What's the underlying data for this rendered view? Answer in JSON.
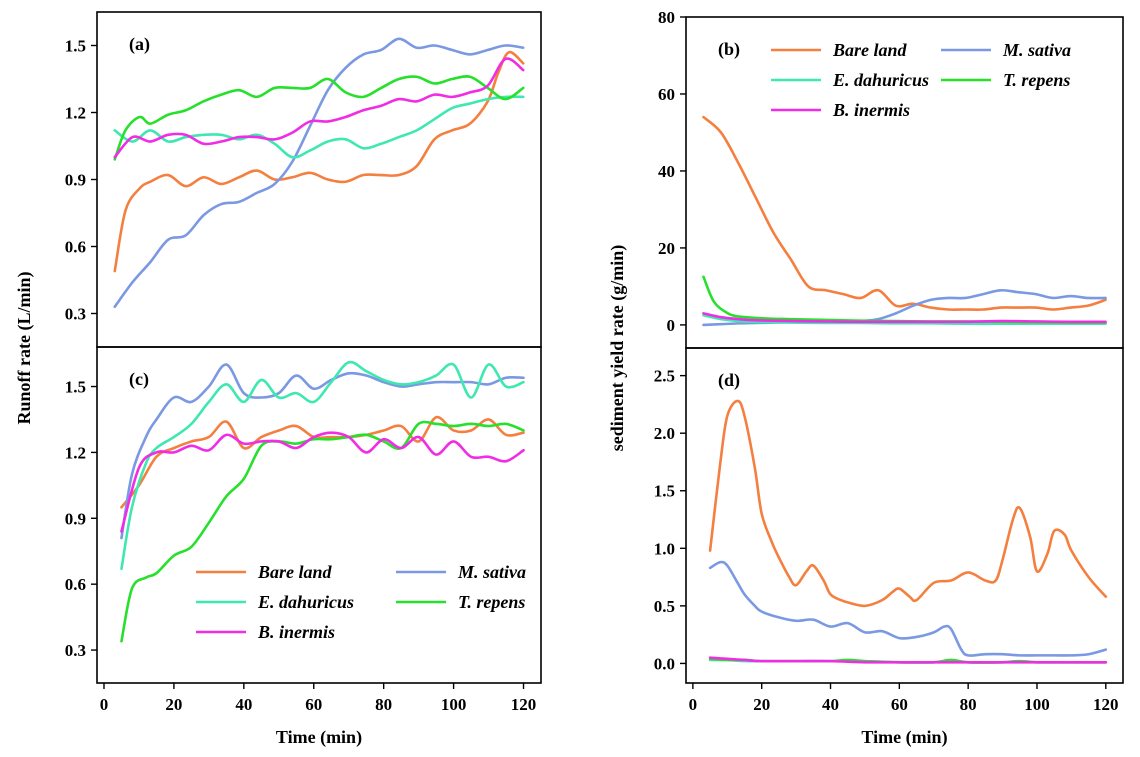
{
  "chart_data": [
    {
      "type": "line",
      "panel": "(a)",
      "ylabel": "Runoff rate (L/min)",
      "xlim": [
        0,
        125
      ],
      "ylim": [
        0.15,
        1.65
      ],
      "yticks": [
        0.3,
        0.6,
        0.9,
        1.2,
        1.5
      ],
      "legend": false,
      "series": [
        {
          "name": "Bare land",
          "color": "#f47f3f",
          "x": [
            5,
            8,
            12,
            15,
            20,
            25,
            30,
            35,
            40,
            45,
            50,
            55,
            60,
            65,
            70,
            75,
            80,
            85,
            90,
            95,
            100,
            105,
            110,
            113,
            116,
            120
          ],
          "y": [
            0.49,
            0.76,
            0.86,
            0.89,
            0.92,
            0.87,
            0.91,
            0.88,
            0.91,
            0.94,
            0.9,
            0.91,
            0.93,
            0.9,
            0.89,
            0.92,
            0.92,
            0.92,
            0.96,
            1.08,
            1.12,
            1.15,
            1.25,
            1.38,
            1.47,
            1.42
          ]
        },
        {
          "name": "M. sativa",
          "color": "#7b98e3",
          "x": [
            5,
            10,
            15,
            20,
            25,
            30,
            35,
            40,
            45,
            50,
            55,
            60,
            65,
            70,
            75,
            80,
            85,
            90,
            95,
            100,
            105,
            110,
            115,
            120
          ],
          "y": [
            0.33,
            0.44,
            0.53,
            0.63,
            0.65,
            0.74,
            0.79,
            0.8,
            0.84,
            0.88,
            0.98,
            1.14,
            1.3,
            1.4,
            1.46,
            1.48,
            1.53,
            1.49,
            1.5,
            1.48,
            1.46,
            1.48,
            1.5,
            1.49
          ]
        },
        {
          "name": "E. dahuricus",
          "color": "#3ee8b0",
          "x": [
            5,
            10,
            15,
            20,
            25,
            30,
            35,
            40,
            45,
            50,
            55,
            60,
            65,
            70,
            75,
            80,
            85,
            90,
            95,
            100,
            105,
            110,
            115,
            120
          ],
          "y": [
            1.12,
            1.07,
            1.12,
            1.07,
            1.09,
            1.1,
            1.1,
            1.08,
            1.1,
            1.06,
            1.0,
            1.03,
            1.07,
            1.08,
            1.04,
            1.06,
            1.09,
            1.12,
            1.17,
            1.22,
            1.24,
            1.26,
            1.27,
            1.27
          ]
        },
        {
          "name": "T. repens",
          "color": "#27e02c",
          "x": [
            5,
            8,
            12,
            15,
            20,
            25,
            30,
            35,
            40,
            45,
            50,
            55,
            60,
            65,
            70,
            75,
            80,
            85,
            90,
            95,
            100,
            105,
            110,
            115,
            120
          ],
          "y": [
            0.99,
            1.12,
            1.18,
            1.15,
            1.19,
            1.21,
            1.25,
            1.28,
            1.3,
            1.27,
            1.31,
            1.31,
            1.31,
            1.35,
            1.29,
            1.27,
            1.31,
            1.35,
            1.36,
            1.33,
            1.35,
            1.36,
            1.31,
            1.26,
            1.31
          ]
        },
        {
          "name": "B. inermis",
          "color": "#f02de4",
          "x": [
            5,
            10,
            15,
            20,
            25,
            30,
            35,
            40,
            45,
            50,
            55,
            60,
            65,
            70,
            75,
            80,
            85,
            90,
            95,
            100,
            105,
            110,
            115,
            120
          ],
          "y": [
            1.0,
            1.09,
            1.07,
            1.1,
            1.1,
            1.06,
            1.07,
            1.09,
            1.09,
            1.08,
            1.11,
            1.16,
            1.16,
            1.18,
            1.21,
            1.23,
            1.26,
            1.25,
            1.28,
            1.27,
            1.29,
            1.32,
            1.44,
            1.39
          ]
        }
      ]
    },
    {
      "type": "line",
      "panel": "(b)",
      "ylabel": "sediment yield rate (g/min)",
      "xlim": [
        0,
        125
      ],
      "ylim": [
        -6,
        80
      ],
      "yticks": [
        0,
        20,
        40,
        60,
        80
      ],
      "legend": true,
      "legend_order": [
        "Bare land",
        "M. sativa",
        "E. dahuricus",
        "T. repens",
        "B. inermis"
      ],
      "series": [
        {
          "name": "Bare land",
          "color": "#f47f3f",
          "x": [
            5,
            10,
            15,
            20,
            25,
            30,
            35,
            40,
            45,
            50,
            55,
            60,
            65,
            70,
            75,
            80,
            85,
            90,
            95,
            100,
            105,
            110,
            115,
            120
          ],
          "y": [
            54,
            50,
            42,
            33,
            24,
            17,
            10,
            9,
            8,
            7,
            9,
            5,
            5.5,
            4.5,
            4,
            4,
            4,
            4.5,
            4.5,
            4.5,
            4,
            4.5,
            5,
            6.5
          ]
        },
        {
          "name": "M. sativa",
          "color": "#7b98e3",
          "x": [
            5,
            10,
            15,
            20,
            25,
            30,
            35,
            40,
            45,
            50,
            55,
            60,
            65,
            70,
            75,
            80,
            85,
            90,
            95,
            100,
            105,
            110,
            115,
            120
          ],
          "y": [
            0,
            0.2,
            0.4,
            0.5,
            0.6,
            0.7,
            0.8,
            0.8,
            0.9,
            1,
            1.5,
            3,
            5,
            6.5,
            7,
            7,
            8,
            9,
            8.5,
            8,
            7,
            7.5,
            7,
            7
          ]
        },
        {
          "name": "E. dahuricus",
          "color": "#3ee8b0",
          "x": [
            5,
            10,
            15,
            20,
            30,
            40,
            50,
            60,
            70,
            80,
            90,
            100,
            110,
            120
          ],
          "y": [
            2.5,
            1.5,
            1,
            0.8,
            0.6,
            0.5,
            0.5,
            0.4,
            0.4,
            0.3,
            0.3,
            0.3,
            0.3,
            0.3
          ]
        },
        {
          "name": "T. repens",
          "color": "#27e02c",
          "x": [
            5,
            8,
            12,
            15,
            20,
            25,
            30,
            40,
            50,
            60,
            70,
            80,
            90,
            100,
            110,
            120
          ],
          "y": [
            12.5,
            6,
            3,
            2.2,
            1.8,
            1.6,
            1.5,
            1.3,
            1.1,
            1,
            0.9,
            0.9,
            0.8,
            0.7,
            0.6,
            0.6
          ]
        },
        {
          "name": "B. inermis",
          "color": "#f02de4",
          "x": [
            5,
            10,
            15,
            20,
            30,
            40,
            50,
            60,
            70,
            80,
            90,
            100,
            110,
            120
          ],
          "y": [
            3,
            2,
            1.5,
            1.2,
            1,
            0.9,
            0.8,
            0.8,
            0.8,
            0.8,
            1,
            0.9,
            0.8,
            0.8
          ]
        }
      ]
    },
    {
      "type": "line",
      "panel": "(c)",
      "xlabel": "Time (min)",
      "xlim": [
        -2,
        125
      ],
      "xticks": [
        0,
        20,
        40,
        60,
        80,
        100,
        120
      ],
      "ylim": [
        0.15,
        1.68
      ],
      "yticks": [
        0.3,
        0.6,
        0.9,
        1.2,
        1.5
      ],
      "legend": true,
      "legend_order": [
        "Bare land",
        "M. sativa",
        "E. dahuricus",
        "T. repens",
        "B. inermis"
      ],
      "series": [
        {
          "name": "Bare land",
          "color": "#f47f3f",
          "x": [
            5,
            10,
            15,
            20,
            25,
            30,
            35,
            40,
            45,
            50,
            55,
            60,
            65,
            70,
            75,
            80,
            85,
            90,
            95,
            100,
            105,
            110,
            115,
            120
          ],
          "y": [
            0.95,
            1.05,
            1.18,
            1.22,
            1.25,
            1.27,
            1.34,
            1.22,
            1.27,
            1.3,
            1.32,
            1.27,
            1.27,
            1.27,
            1.28,
            1.3,
            1.32,
            1.25,
            1.36,
            1.3,
            1.3,
            1.35,
            1.28,
            1.29
          ]
        },
        {
          "name": "M. sativa",
          "color": "#7b98e3",
          "x": [
            5,
            8,
            12,
            15,
            20,
            25,
            30,
            35,
            40,
            45,
            50,
            55,
            60,
            65,
            70,
            75,
            80,
            85,
            90,
            95,
            100,
            105,
            110,
            115,
            120
          ],
          "y": [
            0.81,
            1.1,
            1.27,
            1.35,
            1.45,
            1.43,
            1.5,
            1.6,
            1.47,
            1.45,
            1.47,
            1.55,
            1.49,
            1.53,
            1.56,
            1.55,
            1.52,
            1.5,
            1.51,
            1.52,
            1.52,
            1.52,
            1.51,
            1.54,
            1.54
          ]
        },
        {
          "name": "E. dahuricus",
          "color": "#3ee8b0",
          "x": [
            5,
            8,
            12,
            15,
            20,
            25,
            30,
            35,
            40,
            45,
            50,
            55,
            60,
            65,
            70,
            75,
            80,
            85,
            90,
            95,
            100,
            105,
            110,
            115,
            120
          ],
          "y": [
            0.67,
            0.95,
            1.15,
            1.22,
            1.27,
            1.33,
            1.43,
            1.51,
            1.43,
            1.53,
            1.45,
            1.47,
            1.43,
            1.52,
            1.61,
            1.57,
            1.53,
            1.51,
            1.52,
            1.55,
            1.6,
            1.45,
            1.6,
            1.5,
            1.52
          ]
        },
        {
          "name": "T. repens",
          "color": "#27e02c",
          "x": [
            5,
            8,
            12,
            15,
            20,
            25,
            30,
            35,
            40,
            45,
            50,
            55,
            60,
            65,
            70,
            75,
            80,
            85,
            90,
            95,
            100,
            105,
            110,
            115,
            120
          ],
          "y": [
            0.34,
            0.58,
            0.63,
            0.65,
            0.73,
            0.77,
            0.88,
            1.0,
            1.08,
            1.23,
            1.25,
            1.24,
            1.26,
            1.26,
            1.27,
            1.28,
            1.25,
            1.22,
            1.33,
            1.33,
            1.32,
            1.33,
            1.32,
            1.33,
            1.3
          ]
        },
        {
          "name": "B. inermis",
          "color": "#f02de4",
          "x": [
            5,
            10,
            15,
            20,
            25,
            30,
            35,
            40,
            45,
            50,
            55,
            60,
            65,
            70,
            75,
            80,
            85,
            90,
            95,
            100,
            105,
            110,
            115,
            120
          ],
          "y": [
            0.84,
            1.13,
            1.2,
            1.2,
            1.23,
            1.21,
            1.28,
            1.24,
            1.25,
            1.25,
            1.22,
            1.27,
            1.29,
            1.27,
            1.2,
            1.26,
            1.22,
            1.27,
            1.19,
            1.25,
            1.18,
            1.18,
            1.16,
            1.21
          ]
        }
      ]
    },
    {
      "type": "line",
      "panel": "(d)",
      "xlabel": "Time (min)",
      "xlim": [
        -2,
        125
      ],
      "xticks": [
        0,
        20,
        40,
        60,
        80,
        100,
        120
      ],
      "ylim": [
        -0.17,
        2.74
      ],
      "yticks": [
        0.0,
        0.5,
        1.0,
        1.5,
        2.0,
        2.5
      ],
      "legend": false,
      "series": [
        {
          "name": "Bare land",
          "color": "#f47f3f",
          "x": [
            5,
            8,
            10,
            13,
            15,
            18,
            20,
            23,
            25,
            28,
            30,
            33,
            35,
            38,
            40,
            43,
            45,
            50,
            55,
            58,
            60,
            63,
            65,
            70,
            75,
            80,
            85,
            88,
            90,
            93,
            95,
            98,
            100,
            103,
            105,
            108,
            110,
            115,
            120
          ],
          "y": [
            0.98,
            1.75,
            2.15,
            2.28,
            2.15,
            1.7,
            1.3,
            1.05,
            0.92,
            0.75,
            0.68,
            0.8,
            0.85,
            0.72,
            0.6,
            0.55,
            0.53,
            0.5,
            0.55,
            0.62,
            0.65,
            0.58,
            0.55,
            0.7,
            0.72,
            0.79,
            0.72,
            0.72,
            0.9,
            1.25,
            1.35,
            1.1,
            0.8,
            0.95,
            1.15,
            1.12,
            0.98,
            0.75,
            0.58
          ]
        },
        {
          "name": "M. sativa",
          "color": "#7b98e3",
          "x": [
            5,
            8,
            10,
            13,
            15,
            18,
            20,
            25,
            30,
            35,
            40,
            45,
            50,
            55,
            60,
            65,
            70,
            73,
            75,
            78,
            80,
            85,
            90,
            95,
            100,
            105,
            110,
            115,
            120
          ],
          "y": [
            0.83,
            0.88,
            0.85,
            0.7,
            0.6,
            0.5,
            0.45,
            0.4,
            0.37,
            0.38,
            0.32,
            0.35,
            0.27,
            0.28,
            0.22,
            0.23,
            0.27,
            0.32,
            0.3,
            0.12,
            0.07,
            0.08,
            0.08,
            0.07,
            0.07,
            0.07,
            0.07,
            0.08,
            0.12
          ]
        },
        {
          "name": "E. dahuricus",
          "color": "#3ee8b0",
          "x": [
            5,
            10,
            15,
            20,
            30,
            40,
            50,
            60,
            70,
            75,
            80,
            90,
            95,
            100,
            110,
            120
          ],
          "y": [
            0.03,
            0.03,
            0.02,
            0.02,
            0.02,
            0.02,
            0.02,
            0.01,
            0.01,
            0.02,
            0.01,
            0.01,
            0.02,
            0.01,
            0.01,
            0.01
          ]
        },
        {
          "name": "T. repens",
          "color": "#27e02c",
          "x": [
            5,
            10,
            15,
            20,
            30,
            40,
            45,
            50,
            60,
            70,
            75,
            80,
            90,
            95,
            100,
            110,
            120
          ],
          "y": [
            0.04,
            0.03,
            0.03,
            0.02,
            0.02,
            0.02,
            0.03,
            0.02,
            0.01,
            0.01,
            0.03,
            0.01,
            0.01,
            0.02,
            0.01,
            0.01,
            0.01
          ]
        },
        {
          "name": "B. inermis",
          "color": "#f02de4",
          "x": [
            5,
            10,
            15,
            20,
            30,
            40,
            50,
            60,
            70,
            80,
            90,
            100,
            110,
            120
          ],
          "y": [
            0.05,
            0.04,
            0.03,
            0.02,
            0.02,
            0.02,
            0.01,
            0.01,
            0.01,
            0.01,
            0.01,
            0.01,
            0.01,
            0.01
          ]
        }
      ]
    }
  ]
}
